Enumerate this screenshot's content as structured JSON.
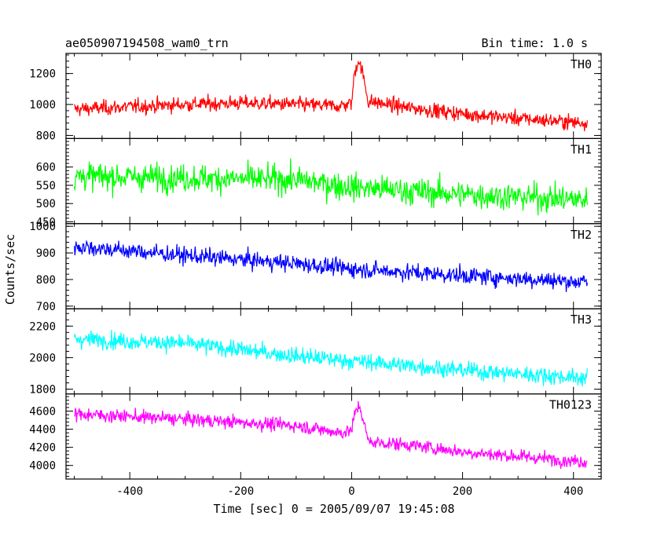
{
  "chart_data": {
    "type": "line",
    "title": "ae050907194508_wam0_trn",
    "subtitle": "Bin time: 1.0 s",
    "xlabel": "Time [sec] 0 = 2005/09/07 19:45:08",
    "ylabel": "Counts/sec",
    "xlim": [
      -515,
      450
    ],
    "xticks": [
      -400,
      -200,
      0,
      200,
      400
    ],
    "x_range": [
      -500,
      425
    ],
    "panels": [
      {
        "name": "TH0",
        "color": "#ff0000",
        "ylim": [
          780,
          1330
        ],
        "yticks": [
          800,
          1000,
          1200
        ],
        "trend": [
          [
            -500,
            970
          ],
          [
            -300,
            1000
          ],
          [
            -200,
            1010
          ],
          [
            -100,
            1000
          ],
          [
            -20,
            990
          ],
          [
            0,
            1010
          ],
          [
            5,
            1200
          ],
          [
            12,
            1290
          ],
          [
            20,
            1200
          ],
          [
            30,
            1020
          ],
          [
            100,
            980
          ],
          [
            200,
            940
          ],
          [
            300,
            910
          ],
          [
            425,
            880
          ]
        ],
        "noise": 45
      },
      {
        "name": "TH1",
        "color": "#00ff00",
        "ylim": [
          445,
          678
        ],
        "yticks": [
          450,
          500,
          550,
          600
        ],
        "trend": [
          [
            -500,
            575
          ],
          [
            -300,
            570
          ],
          [
            -100,
            565
          ],
          [
            0,
            545
          ],
          [
            200,
            525
          ],
          [
            425,
            510
          ]
        ],
        "noise": 35
      },
      {
        "name": "TH2",
        "color": "#0000ff",
        "ylim": [
          690,
          1010
        ],
        "yticks": [
          700,
          800,
          900,
          1000
        ],
        "trend": [
          [
            -500,
            925
          ],
          [
            -300,
            890
          ],
          [
            -100,
            860
          ],
          [
            0,
            840
          ],
          [
            200,
            815
          ],
          [
            425,
            790
          ]
        ],
        "noise": 30
      },
      {
        "name": "TH3",
        "color": "#00ffff",
        "ylim": [
          1770,
          2310
        ],
        "yticks": [
          1800,
          2000,
          2200
        ],
        "trend": [
          [
            -500,
            2120
          ],
          [
            -300,
            2090
          ],
          [
            -100,
            2010
          ],
          [
            0,
            1980
          ],
          [
            200,
            1920
          ],
          [
            425,
            1870
          ]
        ],
        "noise": 50
      },
      {
        "name": "TH0123",
        "color": "#ff00ff",
        "ylim": [
          3850,
          4790
        ],
        "yticks": [
          4000,
          4200,
          4400,
          4600
        ],
        "trend": [
          [
            -500,
            4570
          ],
          [
            -300,
            4510
          ],
          [
            -100,
            4440
          ],
          [
            -20,
            4360
          ],
          [
            0,
            4390
          ],
          [
            8,
            4620
          ],
          [
            15,
            4650
          ],
          [
            25,
            4400
          ],
          [
            30,
            4260
          ],
          [
            100,
            4230
          ],
          [
            200,
            4150
          ],
          [
            300,
            4100
          ],
          [
            425,
            4040
          ]
        ],
        "noise": 70
      }
    ]
  }
}
